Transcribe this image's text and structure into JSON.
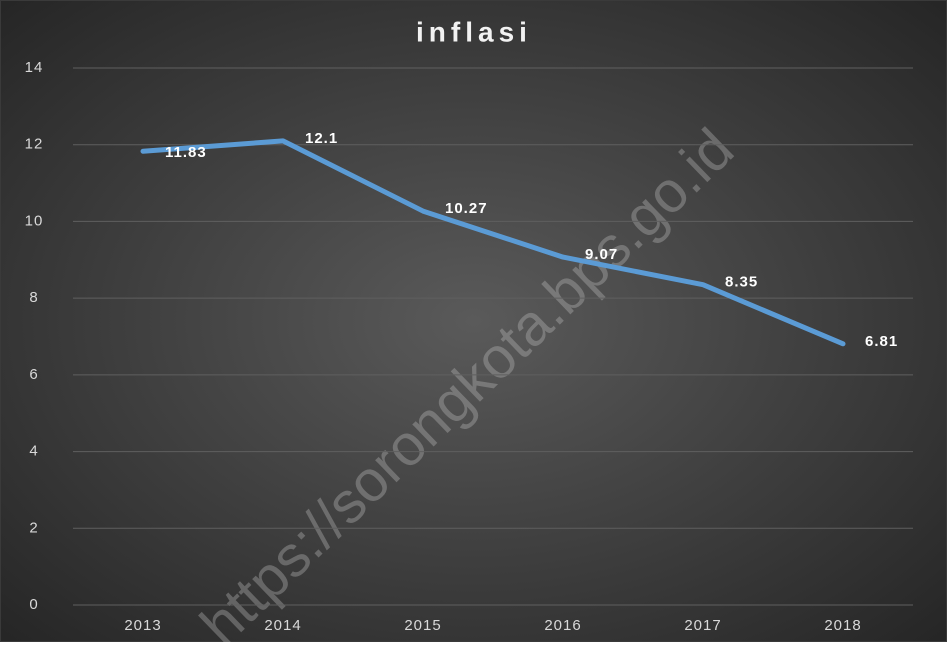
{
  "chart_data": {
    "type": "line",
    "title": "inflasi",
    "watermark": "https://sorongkota.bps.go.id",
    "categories": [
      "2013",
      "2014",
      "2015",
      "2016",
      "2017",
      "2018"
    ],
    "series": [
      {
        "name": "inflasi",
        "color": "#5b9bd5",
        "values": [
          11.83,
          12.1,
          10.27,
          9.07,
          8.35,
          6.81
        ]
      }
    ],
    "ylim": [
      0,
      14
    ],
    "yticks": [
      0,
      2,
      4,
      6,
      8,
      10,
      12,
      14
    ],
    "grid": true
  }
}
